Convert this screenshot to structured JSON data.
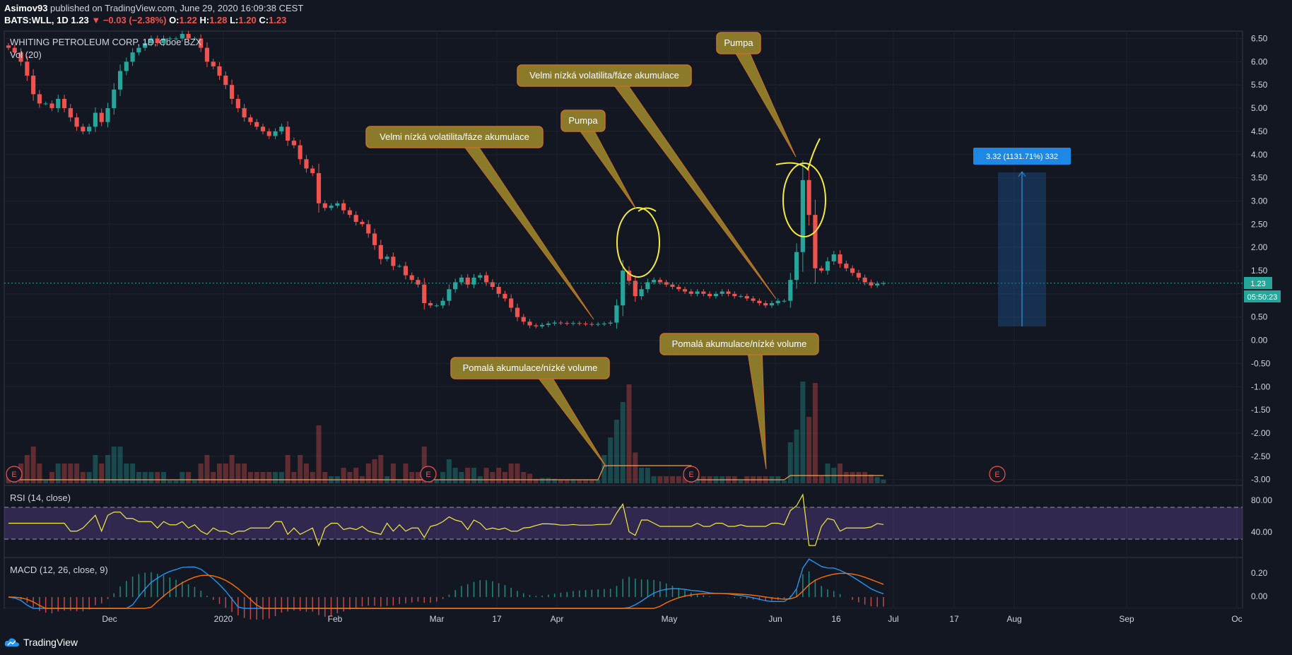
{
  "header": {
    "author": "Asimov93",
    "published": "published on TradingView.com, June 29, 2020 16:09:38 CEST",
    "symbol": "BATS:WLL, 1D",
    "last": "1.23",
    "change": "−0.03 (−2.38%)",
    "o_label": "O:",
    "o": "1.22",
    "h_label": "H:",
    "h": "1.28",
    "l_label": "L:",
    "l": "1.20",
    "c_label": "C:",
    "c": "1.23"
  },
  "footer": {
    "brand": "TradingView"
  },
  "colors": {
    "up": "#26a69a",
    "down": "#ef5350",
    "bg": "#131722",
    "grid": "#1e222d",
    "rsi": "#f5eb3a",
    "macd": "#2196f3",
    "signal": "#ff6d00",
    "annot_fill": "#8a7a2a",
    "annot_border": "#c8702a"
  },
  "chart_data": [
    {
      "type": "candlestick",
      "title": "WHITING PETROLEUM CORP, 1D, Cboe BZX",
      "volume_label": "Vol (20)",
      "y_ticks": [
        "6.50",
        "6.00",
        "5.50",
        "5.00",
        "4.50",
        "4.00",
        "3.50",
        "3.00",
        "2.50",
        "2.00",
        "1.50",
        "1.00",
        "0.50",
        "0.00",
        "-0.50",
        "-1.00",
        "-1.50",
        "-2.00",
        "-2.50",
        "-3.00"
      ],
      "ylim": [
        -3.0,
        6.5
      ],
      "x_ticks": [
        "Dec",
        "2020",
        "Feb",
        "Mar",
        "17",
        "Apr",
        "May",
        "Jun",
        "16",
        "Jul",
        "17",
        "Aug",
        "Sep",
        "Oc"
      ],
      "last_price_label": "1.23",
      "countdown_label": "05:50:23",
      "closes": [
        6.3,
        6.2,
        6.0,
        5.7,
        5.3,
        5.1,
        5.1,
        5.0,
        5.2,
        5.0,
        4.8,
        4.6,
        4.5,
        4.6,
        4.9,
        4.7,
        5.0,
        5.4,
        5.8,
        6.0,
        6.2,
        6.3,
        6.4,
        6.5,
        6.4,
        6.5,
        6.5,
        6.5,
        6.6,
        6.5,
        6.5,
        6.3,
        6.0,
        5.9,
        5.7,
        5.5,
        5.2,
        5.0,
        4.8,
        4.7,
        4.6,
        4.5,
        4.4,
        4.5,
        4.6,
        4.3,
        4.2,
        3.9,
        3.7,
        3.6,
        2.95,
        2.85,
        2.9,
        2.95,
        2.8,
        2.7,
        2.55,
        2.5,
        2.3,
        2.05,
        1.75,
        1.8,
        1.6,
        1.6,
        1.4,
        1.3,
        1.2,
        0.8,
        0.75,
        0.75,
        0.85,
        1.1,
        1.25,
        1.35,
        1.2,
        1.35,
        1.4,
        1.25,
        1.15,
        1.0,
        0.9,
        0.7,
        0.5,
        0.4,
        0.32,
        0.3,
        0.33,
        0.36,
        0.38,
        0.37,
        0.36,
        0.37,
        0.36,
        0.35,
        0.34,
        0.35,
        0.36,
        0.38,
        0.75,
        1.5,
        1.28,
        0.95,
        1.1,
        1.25,
        1.3,
        1.25,
        1.2,
        1.15,
        1.1,
        1.05,
        1.0,
        1.05,
        1.0,
        0.95,
        1.0,
        1.05,
        1.0,
        0.95,
        0.95,
        0.9,
        0.85,
        0.8,
        0.75,
        0.8,
        0.85,
        0.85,
        1.3,
        1.9,
        3.45,
        2.7,
        1.55,
        1.5,
        1.7,
        1.85,
        1.65,
        1.55,
        1.45,
        1.35,
        1.25,
        1.18,
        1.22,
        1.23
      ],
      "volume_avg_level": "low",
      "earnings_markers": [
        "E",
        "E",
        "E",
        "E"
      ],
      "measure_label": "3.32 (1131.71%) 332",
      "annotations": [
        {
          "text": "Velmi nízká volatilita/fáze akumulace"
        },
        {
          "text": "Pumpa"
        },
        {
          "text": "Velmi nízká volatilita/fáze akumulace"
        },
        {
          "text": "Pumpa"
        },
        {
          "text": "Pomalá akumulace/nízké volume"
        },
        {
          "text": "Pomalá akumulace/nízké volume"
        }
      ]
    },
    {
      "type": "line",
      "title": "RSI (14, close)",
      "y_ticks": [
        "80.00",
        "40.00"
      ],
      "ylim": [
        25,
        90
      ],
      "bands": [
        70,
        30
      ]
    },
    {
      "type": "histogram+line",
      "title": "MACD (12, 26, close, 9)",
      "y_ticks": [
        "0.20",
        "0.00"
      ],
      "ylim": [
        -0.3,
        0.3
      ]
    }
  ]
}
